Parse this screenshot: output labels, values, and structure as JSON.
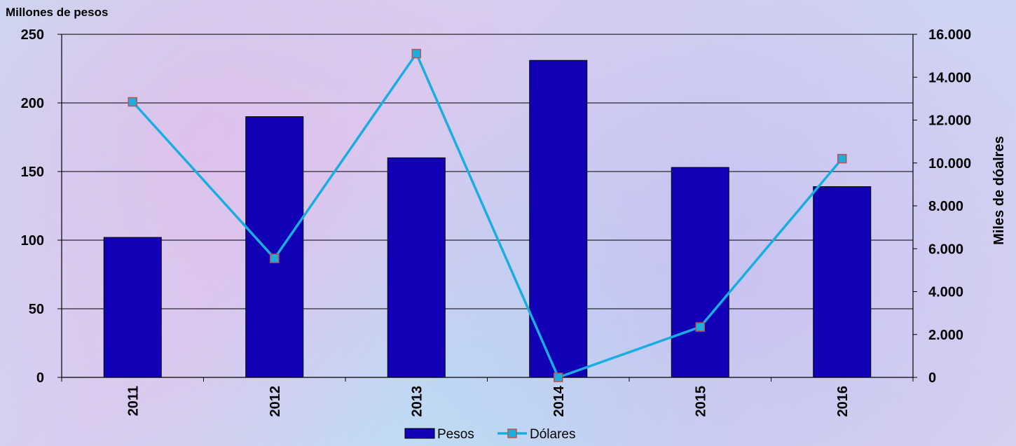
{
  "chart_data": {
    "type": "bar",
    "categories": [
      "2011",
      "2012",
      "2013",
      "2014",
      "2015",
      "2016"
    ],
    "series": [
      {
        "name": "Pesos",
        "type": "bar",
        "axis": "left",
        "values": [
          102,
          190,
          160,
          231,
          153,
          139
        ],
        "color": "#1100b5"
      },
      {
        "name": "Dólares",
        "type": "line",
        "axis": "right",
        "values": [
          12850,
          5550,
          15100,
          0,
          2350,
          10200
        ],
        "color": "#1aaee0",
        "marker_fill": "#1aaee0",
        "marker_edge": "#c0504d"
      }
    ],
    "ylabel": "Millones de pesos",
    "y2label": "Miles de dóalres",
    "ylim": [
      0,
      250
    ],
    "y2lim": [
      0,
      16000
    ],
    "yticks": [
      "0",
      "50",
      "100",
      "150",
      "200",
      "250"
    ],
    "y2ticks": [
      "0",
      "2.000",
      "4.000",
      "6.000",
      "8.000",
      "10.000",
      "12.000",
      "14.000",
      "16.000"
    ],
    "grid": true,
    "legend": "bottom-center"
  }
}
